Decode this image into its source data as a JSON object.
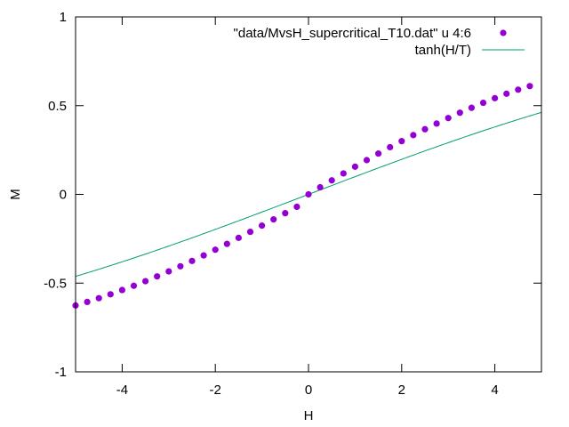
{
  "chart_data": {
    "type": "scatter",
    "xlabel": "H",
    "ylabel": "M",
    "xlim": [
      -5,
      5
    ],
    "ylim": [
      -1,
      1
    ],
    "x_ticks": [
      -4,
      -2,
      0,
      2,
      4
    ],
    "y_ticks": [
      -1,
      -0.5,
      0,
      0.5,
      1
    ],
    "x_tick_labels": [
      "-4",
      "-2",
      "0",
      "2",
      "4"
    ],
    "y_tick_labels": [
      "-1",
      "-0.5",
      "0",
      "0.5",
      "1"
    ],
    "grid": false,
    "legend_position": "top-right",
    "series": [
      {
        "name": "\"data/MvsH_supercritical_T10.dat\" u 4:6",
        "kind": "points",
        "color": "#9400d3",
        "x": [
          -5.0,
          -4.75,
          -4.5,
          -4.25,
          -4.0,
          -3.75,
          -3.5,
          -3.25,
          -3.0,
          -2.75,
          -2.5,
          -2.25,
          -2.0,
          -1.75,
          -1.5,
          -1.25,
          -1.0,
          -0.75,
          -0.5,
          -0.25,
          0.0,
          0.25,
          0.5,
          0.75,
          1.0,
          1.25,
          1.5,
          1.75,
          2.0,
          2.25,
          2.5,
          2.75,
          3.0,
          3.25,
          3.5,
          3.75,
          4.0,
          4.25,
          4.5,
          4.75
        ],
        "y": [
          -0.626,
          -0.606,
          -0.585,
          -0.563,
          -0.539,
          -0.515,
          -0.489,
          -0.462,
          -0.434,
          -0.405,
          -0.375,
          -0.344,
          -0.312,
          -0.279,
          -0.245,
          -0.211,
          -0.176,
          -0.141,
          -0.106,
          -0.07,
          0.0,
          0.04,
          0.079,
          0.118,
          0.156,
          0.193,
          0.23,
          0.266,
          0.3,
          0.334,
          0.367,
          0.399,
          0.43,
          0.46,
          0.488,
          0.516,
          0.542,
          0.567,
          0.59,
          0.61
        ]
      },
      {
        "name": "tanh(H/T)",
        "kind": "line",
        "color": "#009e73",
        "function": "tanh",
        "T": 10
      }
    ]
  }
}
